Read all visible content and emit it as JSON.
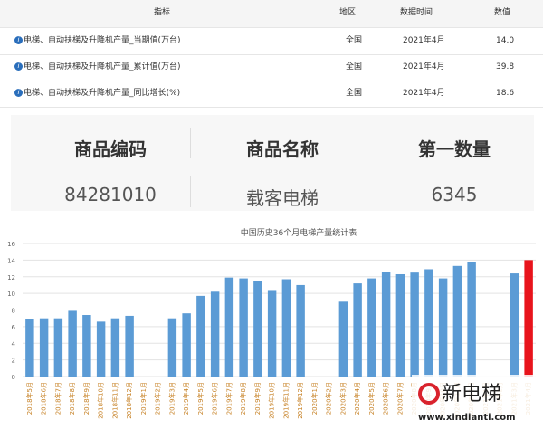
{
  "table1": {
    "headers": [
      "指标",
      "地区",
      "数据时间",
      "数值"
    ],
    "rows": [
      [
        "电梯、自动扶梯及升降机产量_当期值(万台)",
        "全国",
        "2021年4月",
        "14.0"
      ],
      [
        "电梯、自动扶梯及升降机产量_累计值(万台)",
        "全国",
        "2021年4月",
        "39.8"
      ],
      [
        "电梯、自动扶梯及升降机产量_同比增长(%)",
        "全国",
        "2021年4月",
        "18.6"
      ]
    ]
  },
  "table2": {
    "headers": [
      "商品编码",
      "商品名称",
      "第一数量"
    ],
    "rows": [
      [
        "84281010",
        "载客电梯",
        "6345"
      ]
    ]
  },
  "chart_data": {
    "type": "bar",
    "title": "中国历史36个月电梯产量统计表",
    "categories": [
      "2018年5月",
      "2018年6月",
      "2018年7月",
      "2018年8月",
      "2018年9月",
      "2018年10月",
      "2018年11月",
      "2018年12月",
      "2019年1月",
      "2019年2月",
      "2019年3月",
      "2019年4月",
      "2019年5月",
      "2019年6月",
      "2019年7月",
      "2019年8月",
      "2019年9月",
      "2019年10月",
      "2019年11月",
      "2019年12月",
      "2020年1月",
      "2020年2月",
      "2020年3月",
      "2020年4月",
      "2020年5月",
      "2020年6月",
      "2020年7月",
      "2020年8月",
      "2020年9月",
      "2020年10月",
      "2020年11月",
      "2020年12月",
      "2021年1月",
      "2021年2月",
      "2021年3月",
      "2021年4月"
    ],
    "values": [
      6.9,
      7.0,
      7.0,
      7.9,
      7.4,
      6.6,
      7.0,
      7.3,
      null,
      null,
      7.0,
      7.6,
      9.7,
      10.2,
      11.9,
      11.8,
      11.5,
      10.4,
      11.7,
      11.0,
      null,
      null,
      9.0,
      11.2,
      11.8,
      12.6,
      12.3,
      12.5,
      12.9,
      11.8,
      13.3,
      13.8,
      null,
      null,
      12.4,
      14.0
    ],
    "colors": [
      "#5b9bd5",
      "#5b9bd5",
      "#5b9bd5",
      "#5b9bd5",
      "#5b9bd5",
      "#5b9bd5",
      "#5b9bd5",
      "#5b9bd5",
      "#5b9bd5",
      "#5b9bd5",
      "#5b9bd5",
      "#5b9bd5",
      "#5b9bd5",
      "#5b9bd5",
      "#5b9bd5",
      "#5b9bd5",
      "#5b9bd5",
      "#5b9bd5",
      "#5b9bd5",
      "#5b9bd5",
      "#5b9bd5",
      "#5b9bd5",
      "#5b9bd5",
      "#5b9bd5",
      "#5b9bd5",
      "#5b9bd5",
      "#5b9bd5",
      "#5b9bd5",
      "#5b9bd5",
      "#5b9bd5",
      "#5b9bd5",
      "#5b9bd5",
      "#5b9bd5",
      "#5b9bd5",
      "#5b9bd5",
      "#e8141c"
    ],
    "ylim": [
      0,
      16
    ],
    "yticks": [
      0,
      2,
      4,
      6,
      8,
      10,
      12,
      14,
      16
    ],
    "grid": true
  },
  "watermark": {
    "brand": "新电梯",
    "url": "www.xindianti.com"
  }
}
